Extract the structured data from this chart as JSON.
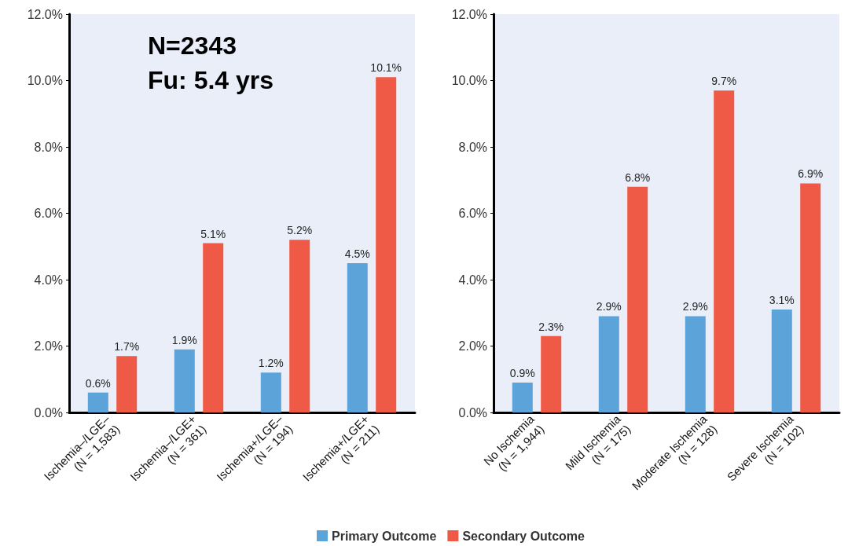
{
  "chart_data": [
    {
      "type": "bar",
      "categories": [
        "Ischemia–/LGE–\n(N = 1,583)",
        "Ischemia–/LGE+\n(N = 361)",
        "Ischemia+/LGE–\n(N = 194)",
        "Ischemia+/LGE+\n(N = 211)"
      ],
      "series": [
        {
          "name": "Primary Outcome",
          "color": "#5ba3d9",
          "values": [
            0.6,
            1.9,
            1.2,
            4.5
          ],
          "value_labels": [
            "0.6%",
            "1.9%",
            "1.2%",
            "4.5%"
          ]
        },
        {
          "name": "Secondary Outcome",
          "color": "#ee5a45",
          "values": [
            1.7,
            5.1,
            5.2,
            10.1
          ],
          "value_labels": [
            "1.7%",
            "5.1%",
            "5.2%",
            "10.1%"
          ]
        }
      ],
      "ylim": [
        0,
        12
      ],
      "yticks": [
        {
          "value": 0,
          "label": "0.0%"
        },
        {
          "value": 2,
          "label": "2.0%"
        },
        {
          "value": 4,
          "label": "4.0%"
        },
        {
          "value": 6,
          "label": "6.0%"
        },
        {
          "value": 8,
          "label": "8.0%"
        },
        {
          "value": 10,
          "label": "10.0%"
        },
        {
          "value": 12,
          "label": "12.0%"
        }
      ],
      "annotations": [
        "N=2343",
        "Fu: 5.4 yrs"
      ],
      "legend": "bottom",
      "grid": false
    },
    {
      "type": "bar",
      "categories": [
        "No Ischemia\n(N = 1,944)",
        "Mild Ischemia\n(N = 175)",
        "Moderate Ischemia\n(N = 128)",
        "Severe Ischemia\n(N = 102)"
      ],
      "series": [
        {
          "color": "#5ba3d9",
          "values": [
            0.9,
            2.9,
            2.9,
            3.1
          ],
          "value_labels": [
            "0.9%",
            "2.9%",
            "2.9%",
            "3.1%"
          ]
        },
        {
          "color": "#ee5a45",
          "values": [
            2.3,
            6.8,
            9.7,
            6.9
          ],
          "value_labels": [
            "2.3%",
            "6.8%",
            "9.7%",
            "6.9%"
          ]
        }
      ],
      "ylim": [
        0,
        12
      ],
      "yticks": [
        {
          "value": 0,
          "label": "0.0%"
        },
        {
          "value": 2,
          "label": "2.0%"
        },
        {
          "value": 4,
          "label": "4.0%"
        },
        {
          "value": 6,
          "label": "6.0%"
        },
        {
          "value": 8,
          "label": "8.0%"
        },
        {
          "value": 10,
          "label": "10.0%"
        },
        {
          "value": 12,
          "label": "12.0%"
        }
      ],
      "legend": false,
      "grid": false
    }
  ]
}
